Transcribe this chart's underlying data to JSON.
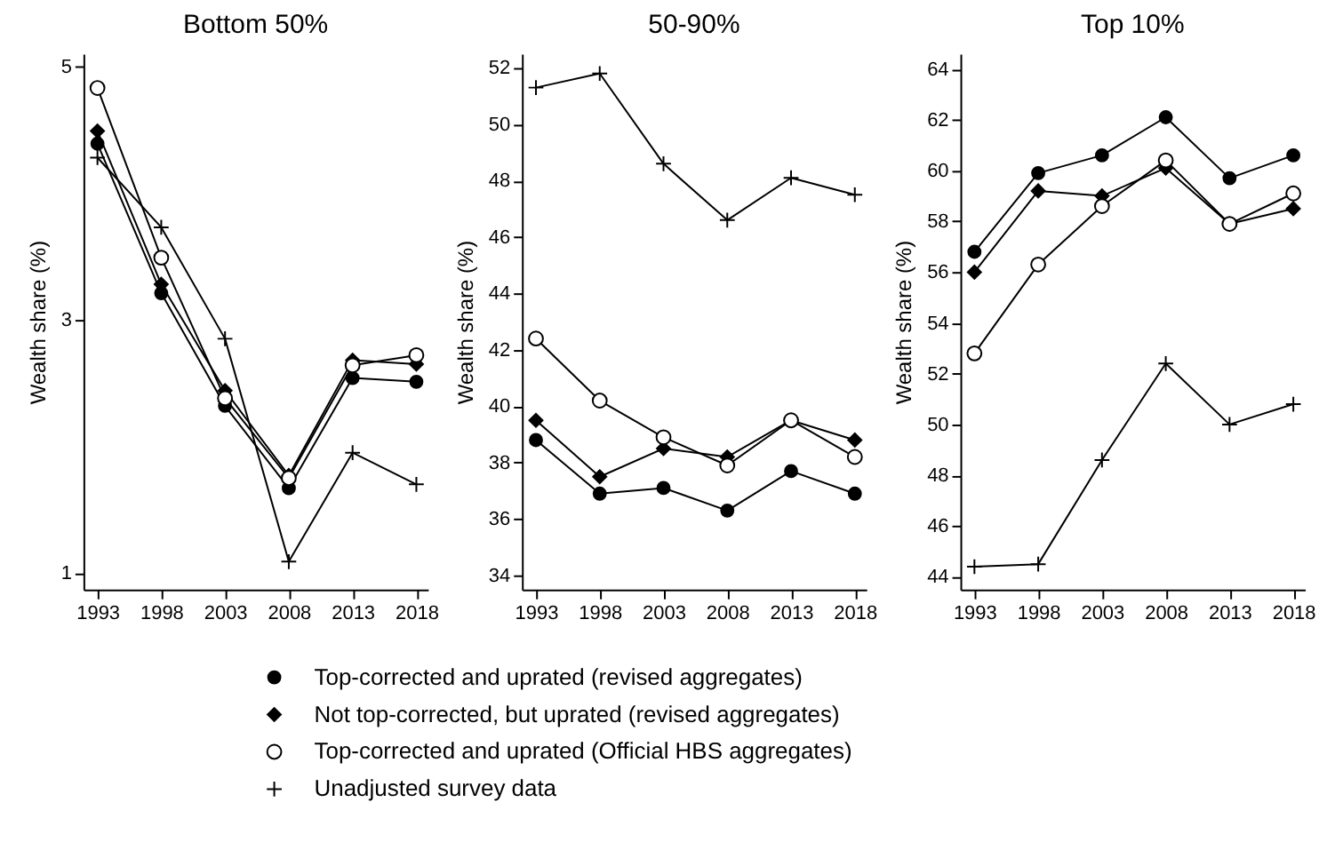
{
  "chart_data": [
    {
      "type": "line",
      "title": "Bottom 50%",
      "ylabel": "Wealth share (%)",
      "x": [
        1993,
        1998,
        2003,
        2008,
        2013,
        2018
      ],
      "xlim": [
        1991.9,
        2018.9
      ],
      "xticks": [
        1993,
        1998,
        2003,
        2008,
        2013,
        2018
      ],
      "ylim": [
        0.87,
        5.1
      ],
      "yticks": [
        1,
        3,
        5
      ],
      "legend": "bottom",
      "series": [
        {
          "name": "Top-corrected and uprated (revised aggregates)",
          "color": "#000000",
          "marker": "circle",
          "values": [
            4.39,
            3.21,
            2.32,
            1.67,
            2.54,
            2.51
          ]
        },
        {
          "name": "Not top-corrected, but uprated (revised aggregates)",
          "color": "#000000",
          "marker": "diamond",
          "values": [
            4.49,
            3.28,
            2.44,
            1.77,
            2.68,
            2.65
          ]
        },
        {
          "name": "Top-corrected and uprated (Official HBS aggregates)",
          "color": "#000000",
          "marker": "circle-open",
          "values": [
            4.83,
            3.49,
            2.38,
            1.75,
            2.64,
            2.72
          ]
        },
        {
          "name": "Unadjusted survey data",
          "color": "#000000",
          "marker": "cross",
          "values": [
            4.28,
            3.73,
            2.85,
            1.09,
            1.95,
            1.7
          ]
        }
      ]
    },
    {
      "type": "line",
      "title": "50-90%",
      "ylabel": "Wealth share (%)",
      "x": [
        1993,
        1998,
        2003,
        2008,
        2013,
        2018
      ],
      "xlim": [
        1991.9,
        2018.9
      ],
      "xticks": [
        1993,
        1998,
        2003,
        2008,
        2013,
        2018
      ],
      "ylim": [
        33.5,
        52.5
      ],
      "yticks": [
        34,
        36,
        38,
        40,
        42,
        44,
        46,
        48,
        50,
        52
      ],
      "legend": "bottom",
      "series": [
        {
          "name": "Top-corrected and uprated (revised aggregates)",
          "color": "#000000",
          "marker": "circle",
          "values": [
            38.8,
            36.9,
            37.1,
            36.3,
            37.7,
            36.9
          ]
        },
        {
          "name": "Not top-corrected, but uprated (revised aggregates)",
          "color": "#000000",
          "marker": "diamond",
          "values": [
            39.5,
            37.5,
            38.5,
            38.2,
            39.5,
            38.8
          ]
        },
        {
          "name": "Top-corrected and uprated (Official HBS aggregates)",
          "color": "#000000",
          "marker": "circle-open",
          "values": [
            42.4,
            40.2,
            38.9,
            37.9,
            39.5,
            38.2
          ]
        },
        {
          "name": "Unadjusted survey data",
          "color": "#000000",
          "marker": "cross",
          "values": [
            51.3,
            51.8,
            48.6,
            46.6,
            48.1,
            47.5
          ]
        }
      ]
    },
    {
      "type": "line",
      "title": "Top 10%",
      "ylabel": "Wealth share (%)",
      "x": [
        1993,
        1998,
        2003,
        2008,
        2013,
        2018
      ],
      "xlim": [
        1991.9,
        2018.9
      ],
      "xticks": [
        1993,
        1998,
        2003,
        2008,
        2013,
        2018
      ],
      "ylim": [
        43.5,
        64.6
      ],
      "yticks": [
        44,
        46,
        48,
        50,
        52,
        54,
        56,
        58,
        60,
        62,
        64
      ],
      "legend": "bottom",
      "series": [
        {
          "name": "Top-corrected and uprated (revised aggregates)",
          "color": "#000000",
          "marker": "circle",
          "values": [
            56.8,
            59.9,
            60.6,
            62.1,
            59.7,
            60.6
          ]
        },
        {
          "name": "Not top-corrected, but uprated (revised aggregates)",
          "color": "#000000",
          "marker": "diamond",
          "values": [
            56.0,
            59.2,
            59.0,
            60.1,
            57.9,
            58.5
          ]
        },
        {
          "name": "Top-corrected and uprated (Official HBS aggregates)",
          "color": "#000000",
          "marker": "circle-open",
          "values": [
            52.8,
            56.3,
            58.6,
            60.4,
            57.9,
            59.1
          ]
        },
        {
          "name": "Unadjusted survey data",
          "color": "#000000",
          "marker": "cross",
          "values": [
            44.4,
            44.5,
            48.6,
            52.4,
            50.0,
            50.8
          ]
        }
      ]
    }
  ]
}
